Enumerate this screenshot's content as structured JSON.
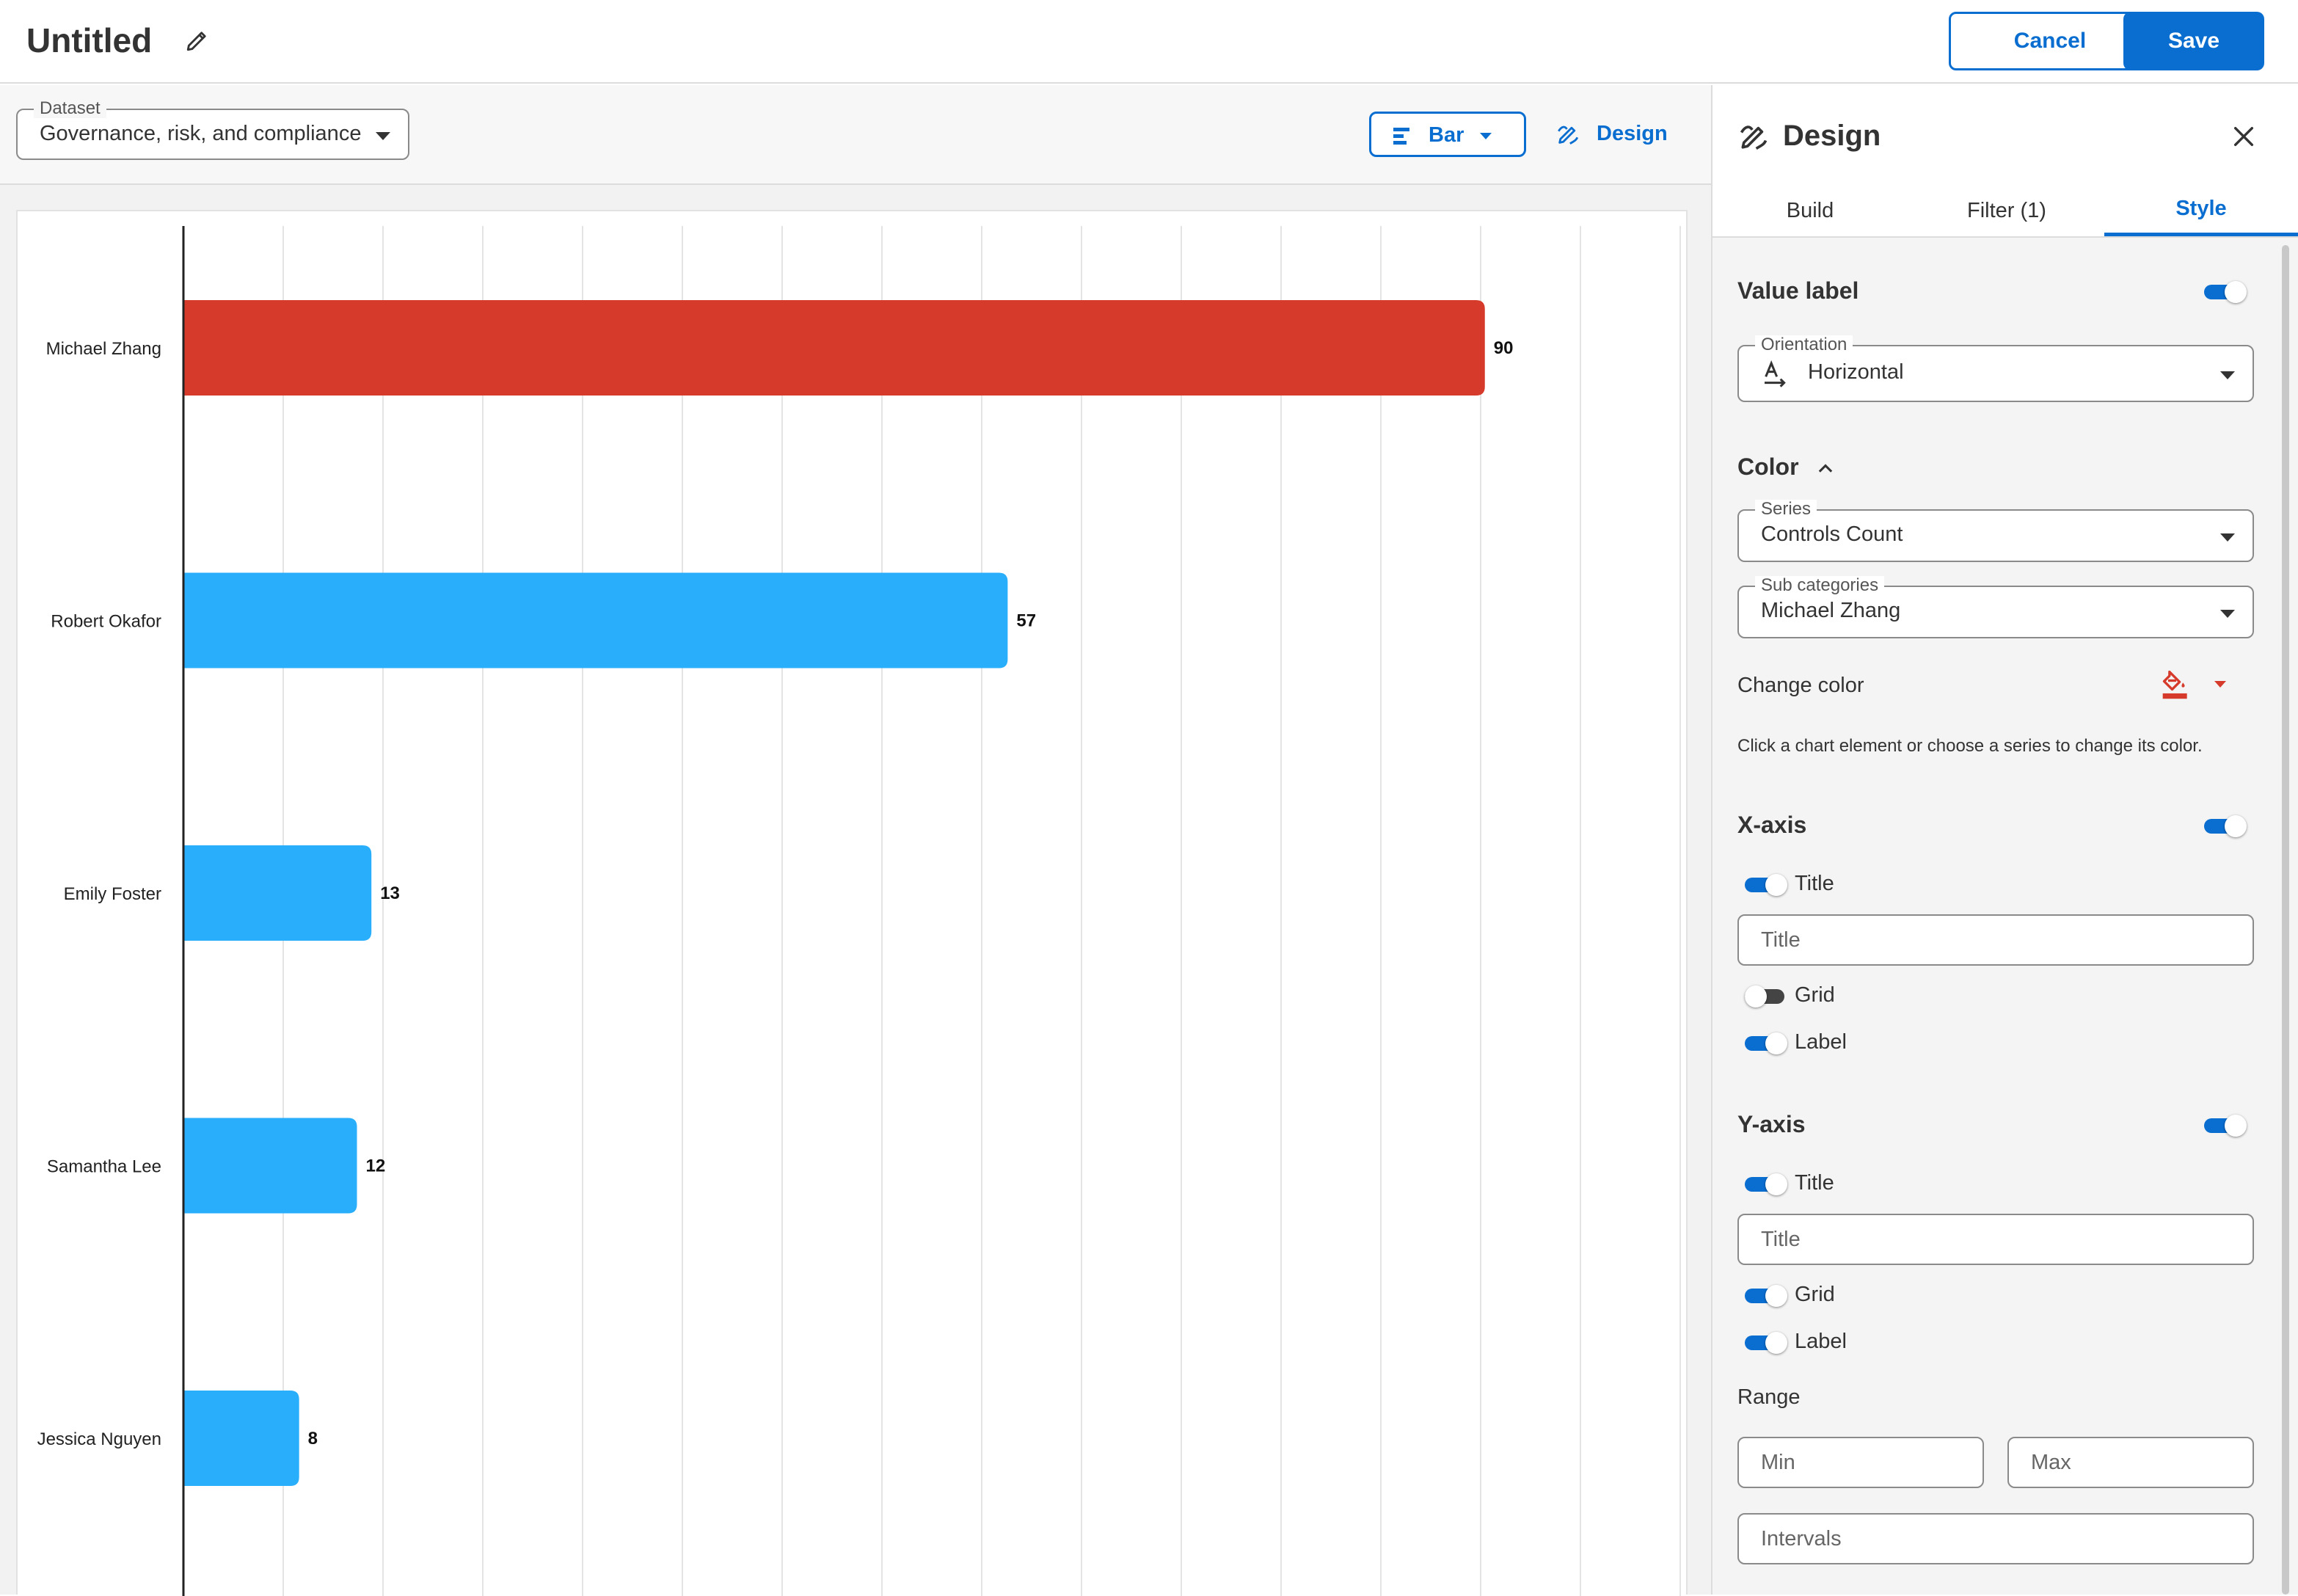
{
  "header": {
    "title": "Untitled",
    "cancel_label": "Cancel",
    "save_label": "Save"
  },
  "toolbar": {
    "dataset_label": "Dataset",
    "dataset_value": "Governance, risk, and compliance",
    "chart_type_label": "Bar",
    "design_label": "Design"
  },
  "chart_data": {
    "type": "bar",
    "orientation": "horizontal",
    "categories": [
      "Michael Zhang",
      "Robert Okafor",
      "Emily Foster",
      "Samantha Lee",
      "Jessica Nguyen"
    ],
    "values": [
      90,
      57,
      13,
      12,
      8
    ],
    "value_labels": [
      "90",
      "57",
      "13",
      "12",
      "8"
    ],
    "highlight_category": "Michael Zhang",
    "highlight_color": "#d63a2b",
    "bar_color": "#29aefc",
    "xlim": [
      0,
      96
    ],
    "grid": "vertical",
    "xlabel": "",
    "ylabel": ""
  },
  "panel": {
    "title": "Design",
    "tabs": [
      "Build",
      "Filter (1)",
      "Style"
    ],
    "active_tab": "Style",
    "value_label": {
      "title": "Value label",
      "enabled": true,
      "orientation_label": "Orientation",
      "orientation_value": "Horizontal"
    },
    "color": {
      "title": "Color",
      "series_label": "Series",
      "series_value": "Controls Count",
      "subcategories_label": "Sub categories",
      "subcategories_value": "Michael Zhang",
      "change_color_label": "Change color",
      "selected_color": "#d63a2b",
      "help_text": "Click a chart element or choose a series to change its color."
    },
    "x_axis": {
      "title": "X-axis",
      "enabled": true,
      "title_toggle_label": "Title",
      "title_placeholder": "Title",
      "grid_label": "Grid",
      "grid_enabled": false,
      "label_label": "Label",
      "label_enabled": true
    },
    "y_axis": {
      "title": "Y-axis",
      "enabled": true,
      "title_toggle_label": "Title",
      "title_placeholder": "Title",
      "grid_label": "Grid",
      "grid_enabled": true,
      "label_label": "Label",
      "label_enabled": true,
      "range_label": "Range",
      "min_placeholder": "Min",
      "max_placeholder": "Max",
      "intervals_placeholder": "Intervals"
    }
  }
}
